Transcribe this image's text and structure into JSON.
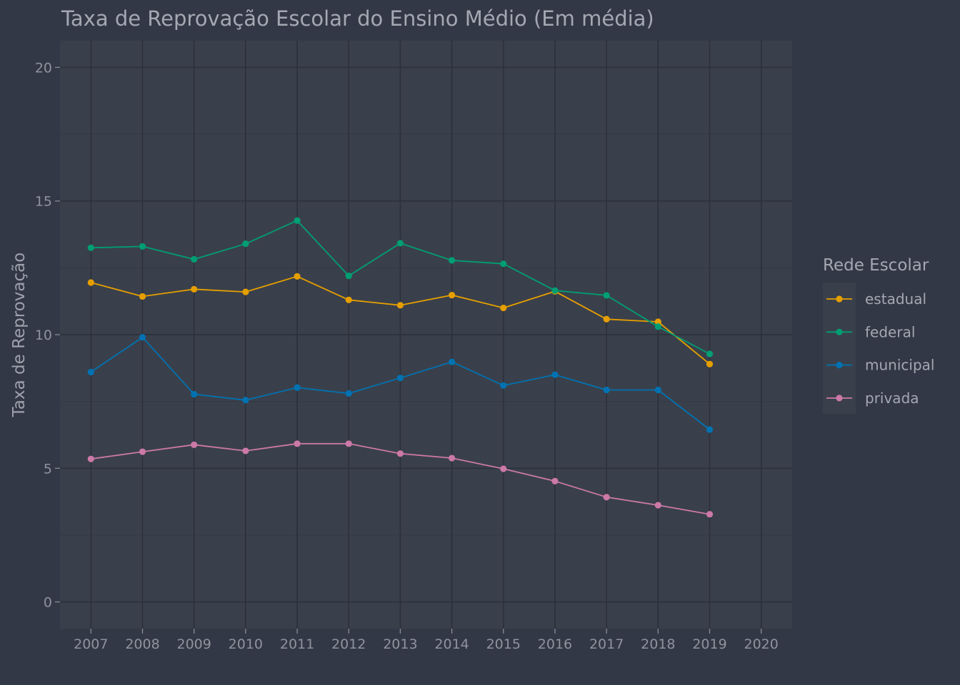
{
  "chart_data": {
    "type": "line",
    "title": "Taxa de Reprovação Escolar do Ensino Médio (Em média)",
    "xlabel": "",
    "ylabel": "Taxa de Reprovação",
    "x": [
      2007,
      2008,
      2009,
      2010,
      2011,
      2012,
      2013,
      2014,
      2015,
      2016,
      2017,
      2018,
      2019
    ],
    "x_ticks": [
      "2007",
      "2008",
      "2009",
      "2010",
      "2011",
      "2012",
      "2013",
      "2014",
      "2015",
      "2016",
      "2017",
      "2018",
      "2019",
      "2020"
    ],
    "y_ticks": [
      "0",
      "5",
      "10",
      "15",
      "20"
    ],
    "xlim": [
      2006.4,
      2020.6
    ],
    "ylim": [
      -1,
      21
    ],
    "grid": true,
    "legend": {
      "title": "Rede Escolar",
      "placement": "right"
    },
    "series": [
      {
        "name": "estadual",
        "color": "#e69f00",
        "values": [
          11.95,
          11.43,
          11.7,
          11.6,
          12.18,
          11.3,
          11.1,
          11.48,
          11.0,
          11.62,
          10.58,
          10.48,
          8.9
        ]
      },
      {
        "name": "federal",
        "color": "#009e73",
        "values": [
          13.25,
          13.3,
          12.82,
          13.4,
          14.27,
          12.2,
          13.42,
          12.78,
          12.65,
          11.65,
          11.47,
          10.3,
          9.28
        ]
      },
      {
        "name": "municipal",
        "color": "#0072b2",
        "values": [
          8.6,
          9.9,
          7.77,
          7.55,
          8.02,
          7.8,
          8.38,
          8.98,
          8.1,
          8.5,
          7.93,
          7.93,
          6.45
        ]
      },
      {
        "name": "privada",
        "color": "#cc79a7",
        "values": [
          5.35,
          5.62,
          5.88,
          5.65,
          5.92,
          5.92,
          5.55,
          5.38,
          4.98,
          4.52,
          3.92,
          3.62,
          3.28
        ]
      }
    ]
  }
}
